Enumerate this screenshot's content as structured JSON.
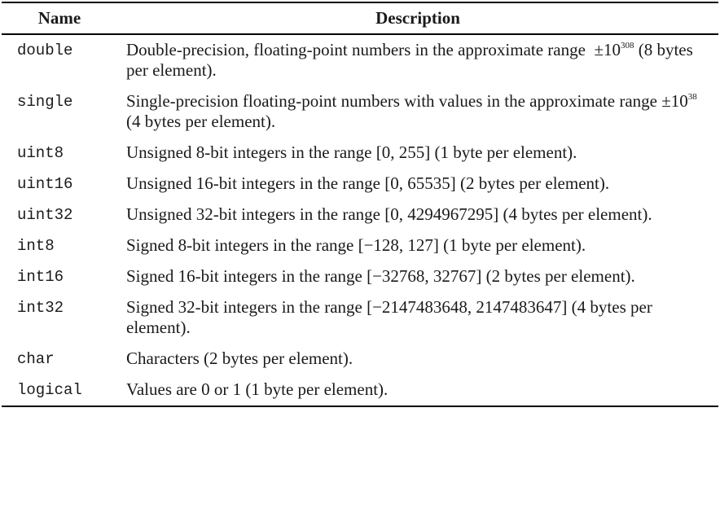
{
  "table": {
    "headers": {
      "name": "Name",
      "description": "Description"
    },
    "rows": [
      {
        "name": "double",
        "description": "Double-precision, floating-point numbers in the approximate range",
        "range_symbol": "±10",
        "range_exponent": "308",
        "description_tail": "(8 bytes per element)."
      },
      {
        "name": "single",
        "description": "Single-precision floating-point numbers with values in the approximate range",
        "range_symbol": "±10",
        "range_exponent": "38",
        "description_tail": "(4 bytes per element)."
      },
      {
        "name": "uint8",
        "description": "Unsigned 8-bit integers in the range [0, 255] (1 byte per element)."
      },
      {
        "name": "uint16",
        "description": "Unsigned 16-bit integers in the range [0, 65535] (2 bytes per element)."
      },
      {
        "name": "uint32",
        "description": "Unsigned 32-bit integers in the range [0, 4294967295] (4 bytes per element)."
      },
      {
        "name": "int8",
        "description": "Signed 8-bit integers in the range [−128, 127] (1 byte per element)."
      },
      {
        "name": "int16",
        "description": "Signed 16-bit integers in the range [−32768, 32767] (2 bytes per element)."
      },
      {
        "name": "int32",
        "description": "Signed 32-bit integers in the range [−2147483648, 2147483647] (4 bytes per element)."
      },
      {
        "name": "char",
        "description": "Characters (2 bytes per element)."
      },
      {
        "name": "logical",
        "description": "Values are 0 or 1 (1 byte per element)."
      }
    ]
  }
}
